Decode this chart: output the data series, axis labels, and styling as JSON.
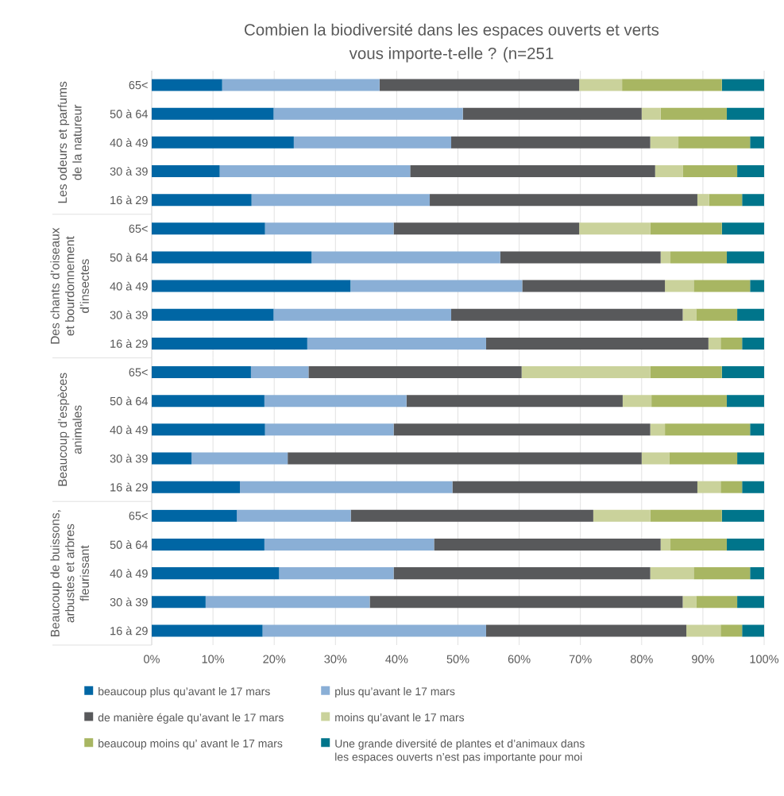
{
  "chart_data": [
    {
      "type": "bar",
      "orientation": "horizontal",
      "stacked": true,
      "title": "Combien la biodiversité dans les espaces ouverts et verts vous importe-t-elle ? (n=251",
      "ylabel": "Les odeurs et parfums de la natureur",
      "categories": [
        "65<",
        "50 à 64",
        "40 à 49",
        "30 à 39",
        "16 à 29"
      ],
      "series": [
        {
          "color": "#0066a4",
          "values": [
            11.5,
            19.9,
            23.2,
            11.1,
            16.3
          ]
        },
        {
          "color": "#8aafd6",
          "values": [
            25.7,
            30.9,
            25.7,
            31.1,
            29.1
          ]
        },
        {
          "color": "#58595b",
          "values": [
            32.6,
            29.2,
            32.5,
            40.0,
            43.7
          ]
        },
        {
          "color": "#cad29b",
          "values": [
            7.0,
            3.1,
            4.6,
            4.5,
            1.9
          ]
        },
        {
          "color": "#a8b662",
          "values": [
            16.3,
            10.8,
            11.7,
            8.9,
            5.4
          ]
        },
        {
          "color": "#00758b",
          "values": [
            6.9,
            6.1,
            2.3,
            4.4,
            3.6
          ]
        }
      ],
      "xlim": [
        0,
        100
      ],
      "xticks": [
        {
          "value": 0,
          "label": null
        },
        {
          "value": 10,
          "label": null
        },
        {
          "value": 20,
          "label": null
        },
        {
          "value": 30,
          "label": null
        },
        {
          "value": 40,
          "label": null
        },
        {
          "value": 50,
          "label": null
        },
        {
          "value": 60,
          "label": null
        },
        {
          "value": 70,
          "label": null
        },
        {
          "value": 80,
          "label": null
        },
        {
          "value": 90,
          "label": null
        },
        {
          "value": 100,
          "label": null
        }
      ],
      "grid": "x",
      "tick_labels": "y"
    },
    {
      "type": "bar",
      "orientation": "horizontal",
      "stacked": true,
      "ylabel": "Des chants d’oiseaux et bourdonnement d’insectes",
      "categories": [
        "65<",
        "50 à 64",
        "40 à 49",
        "30 à 39",
        "16 à 29"
      ],
      "series": [
        {
          "color": "#0066a4",
          "values": [
            18.5,
            26.1,
            32.5,
            19.9,
            25.4
          ]
        },
        {
          "color": "#8aafd6",
          "values": [
            21.0,
            30.8,
            28.0,
            29.0,
            29.2
          ]
        },
        {
          "color": "#58595b",
          "values": [
            30.3,
            26.2,
            23.3,
            37.8,
            36.3
          ]
        },
        {
          "color": "#cad29b",
          "values": [
            11.6,
            1.6,
            4.7,
            2.2,
            2.0
          ]
        },
        {
          "color": "#a8b662",
          "values": [
            11.7,
            9.2,
            9.2,
            6.7,
            3.5
          ]
        },
        {
          "color": "#00758b",
          "values": [
            6.9,
            6.1,
            2.3,
            4.4,
            3.6
          ]
        }
      ],
      "xlim": [
        0,
        100
      ],
      "xticks": [
        {
          "value": 0,
          "label": null
        },
        {
          "value": 10,
          "label": null
        },
        {
          "value": 20,
          "label": null
        },
        {
          "value": 30,
          "label": null
        },
        {
          "value": 40,
          "label": null
        },
        {
          "value": 50,
          "label": null
        },
        {
          "value": 60,
          "label": null
        },
        {
          "value": 70,
          "label": null
        },
        {
          "value": 80,
          "label": null
        },
        {
          "value": 90,
          "label": null
        },
        {
          "value": 100,
          "label": null
        }
      ],
      "grid": "x",
      "tick_labels": "y"
    },
    {
      "type": "bar",
      "orientation": "horizontal",
      "stacked": true,
      "ylabel": "Beaucoup d’espèces animales",
      "categories": [
        "65<",
        "50 à 64",
        "40 à 49",
        "30 à 39",
        "16 à 29"
      ],
      "series": [
        {
          "color": "#0066a4",
          "values": [
            16.2,
            18.4,
            18.5,
            6.5,
            14.4
          ]
        },
        {
          "color": "#8aafd6",
          "values": [
            9.4,
            23.2,
            21.0,
            15.7,
            34.7
          ]
        },
        {
          "color": "#58595b",
          "values": [
            34.8,
            35.3,
            41.9,
            57.8,
            40.0
          ]
        },
        {
          "color": "#cad29b",
          "values": [
            21.0,
            4.7,
            2.4,
            4.5,
            3.8
          ]
        },
        {
          "color": "#a8b662",
          "values": [
            11.7,
            12.3,
            13.9,
            11.1,
            3.5
          ]
        },
        {
          "color": "#00758b",
          "values": [
            6.9,
            6.1,
            2.3,
            4.4,
            3.6
          ]
        }
      ],
      "xlim": [
        0,
        100
      ],
      "xticks": [
        {
          "value": 0,
          "label": null
        },
        {
          "value": 10,
          "label": null
        },
        {
          "value": 20,
          "label": null
        },
        {
          "value": 30,
          "label": null
        },
        {
          "value": 40,
          "label": null
        },
        {
          "value": 50,
          "label": null
        },
        {
          "value": 60,
          "label": null
        },
        {
          "value": 70,
          "label": null
        },
        {
          "value": 80,
          "label": null
        },
        {
          "value": 90,
          "label": null
        },
        {
          "value": 100,
          "label": null
        }
      ],
      "grid": "x",
      "tick_labels": "y"
    },
    {
      "type": "bar",
      "orientation": "horizontal",
      "stacked": true,
      "ylabel": "Beaucoup de buissons, arbustes et arbres fleurissant",
      "categories": [
        "65<",
        "50 à 64",
        "40 à 49",
        "30 à 39",
        "16 à 29"
      ],
      "series": [
        {
          "name": "beaucoup plus qu’avant le 17 mars",
          "color": "#0066a4",
          "values": [
            13.9,
            18.4,
            20.8,
            8.8,
            18.1
          ]
        },
        {
          "name": "plus qu’avant le 17 mars",
          "color": "#8aafd6",
          "values": [
            18.6,
            27.7,
            18.7,
            26.8,
            36.5
          ]
        },
        {
          "name": "de manière égale qu’avant le 17 mars",
          "color": "#58595b",
          "values": [
            39.6,
            37.0,
            41.9,
            51.1,
            32.7
          ]
        },
        {
          "name": "moins qu’avant le 17 mars",
          "color": "#cad29b",
          "values": [
            9.3,
            1.6,
            7.1,
            2.2,
            5.6
          ]
        },
        {
          "name": "beaucoup moins qu’ avant le 17 mars",
          "color": "#a8b662",
          "values": [
            11.7,
            9.2,
            9.2,
            6.7,
            3.5
          ]
        },
        {
          "name": "Une grande diversité de plantes et d’animaux dans les espaces ouverts n’est pas importante pour moi",
          "color": "#00758b",
          "values": [
            6.9,
            6.1,
            2.3,
            4.4,
            3.6
          ]
        }
      ],
      "xlim": [
        0,
        100
      ],
      "xticks": [
        {
          "value": 0,
          "label": "0%"
        },
        {
          "value": 10,
          "label": "10%"
        },
        {
          "value": 20,
          "label": "20%"
        },
        {
          "value": 30,
          "label": "30%"
        },
        {
          "value": 40,
          "label": "40%"
        },
        {
          "value": 50,
          "label": "50%"
        },
        {
          "value": 60,
          "label": "60%"
        },
        {
          "value": 70,
          "label": "70%"
        },
        {
          "value": 80,
          "label": "80%"
        },
        {
          "value": 90,
          "label": "90%"
        },
        {
          "value": 100,
          "label": "100%"
        }
      ],
      "grid": "x",
      "legend": "bottom"
    }
  ]
}
